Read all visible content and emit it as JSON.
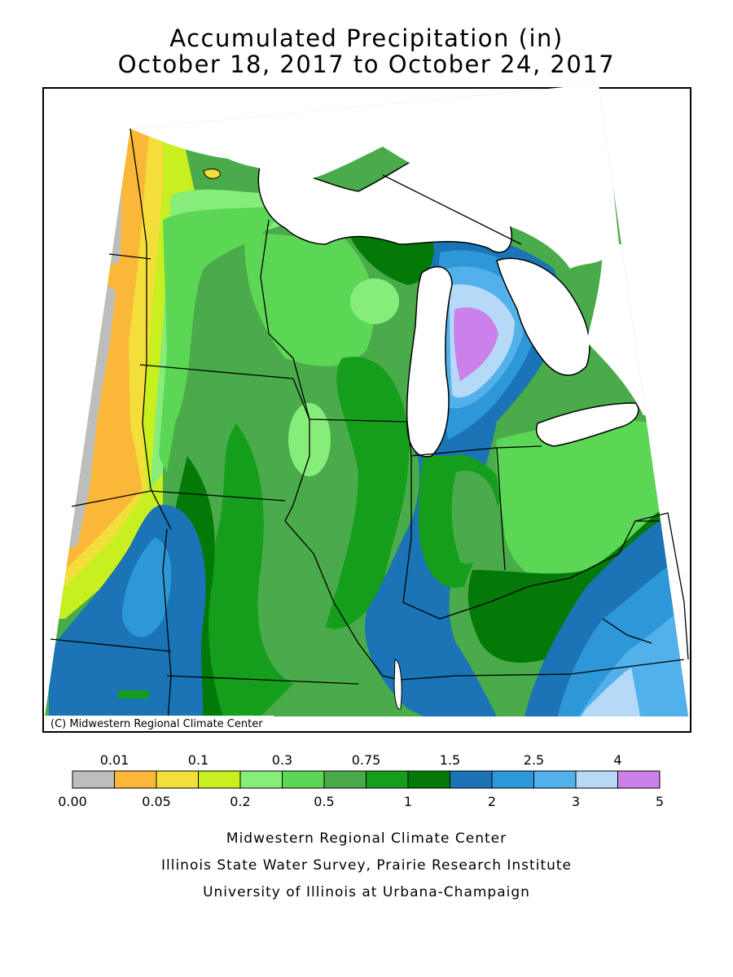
{
  "title": {
    "line1": "Accumulated Precipitation (in)",
    "line2": "October 18, 2017 to October 24, 2017"
  },
  "map": {
    "copyright": "(C) Midwestern Regional Climate Center",
    "colors": {
      "water": "#ffffff",
      "range_0_001": "#bdbdbd",
      "range_001_005": "#fbb838",
      "range_005_01": "#f3de3a",
      "range_01_02": "#c8ef20",
      "range_02_03": "#86ec7a",
      "range_03_05": "#5cd655",
      "range_05_075": "#4aab4a",
      "range_075_1": "#149e1c",
      "range_1_15": "#037a07",
      "range_15_2": "#1a74b6",
      "range_2_25": "#2d98d7",
      "range_25_3": "#52b1ea",
      "range_3_4": "#b5d9f6",
      "range_4_5": "#cc80e9"
    }
  },
  "legend": {
    "colors": [
      "#bdbdbd",
      "#fbb838",
      "#f3de3a",
      "#c8ef20",
      "#86ec7a",
      "#5cd655",
      "#4aab4a",
      "#149e1c",
      "#037a07",
      "#1a74b6",
      "#2d98d7",
      "#52b1ea",
      "#b5d9f6",
      "#cc80e9"
    ],
    "labels_top": [
      "0.01",
      "0.1",
      "0.3",
      "0.75",
      "1.5",
      "2.5",
      "4"
    ],
    "labels_bottom": [
      "0.00",
      "0.05",
      "0.2",
      "0.5",
      "1",
      "2",
      "3",
      "5"
    ]
  },
  "credits": {
    "line1": "Midwestern Regional Climate Center",
    "line2": "Illinois State Water Survey, Prairie Research Institute",
    "line3": "University of Illinois at Urbana-Champaign"
  }
}
